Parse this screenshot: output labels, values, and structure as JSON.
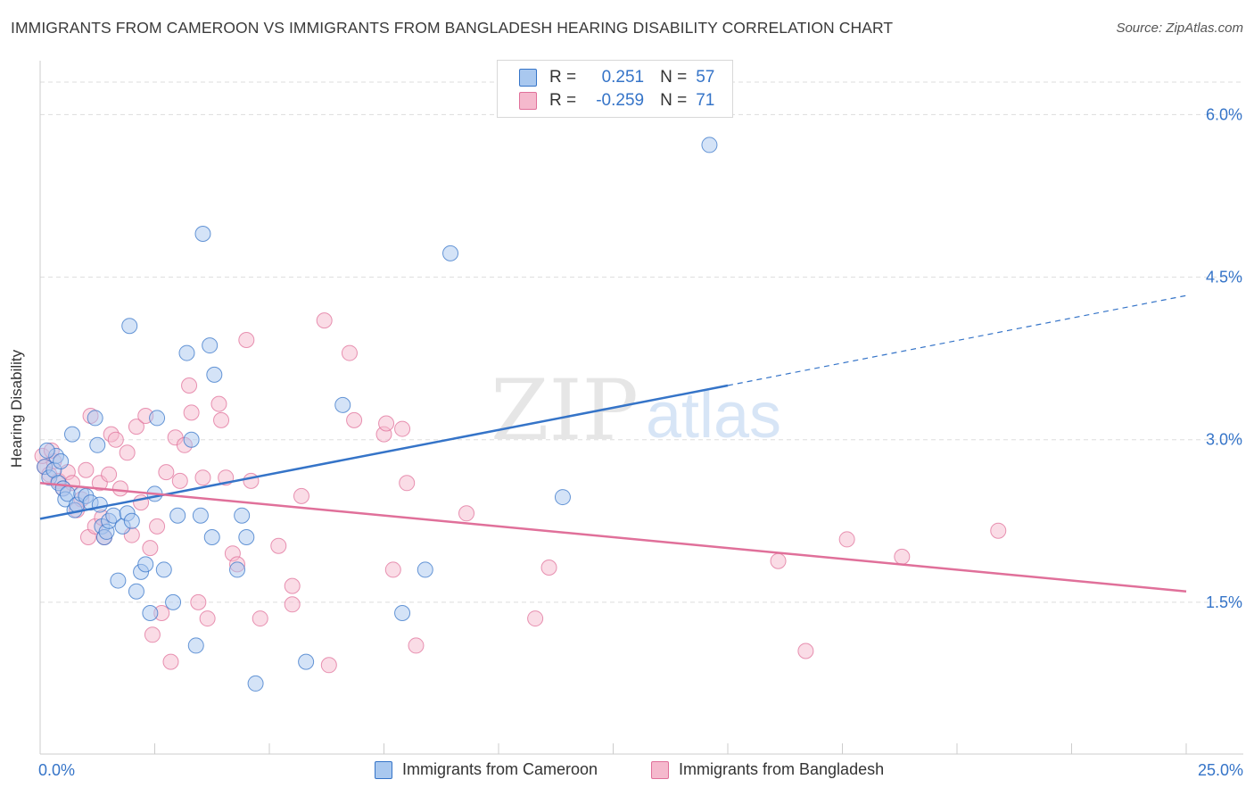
{
  "title": "IMMIGRANTS FROM CAMEROON VS IMMIGRANTS FROM BANGLADESH HEARING DISABILITY CORRELATION CHART",
  "source": "Source: ZipAtlas.com",
  "watermark": {
    "zip": "ZIP",
    "atlas": "atlas"
  },
  "colors": {
    "blue": "#3574c8",
    "blue_fill": "#a9c8ef",
    "pink": "#e0709a",
    "pink_fill": "#f5b9cd",
    "grid": "#dddddd"
  },
  "legend": {
    "rows": [
      {
        "r_label": "R =",
        "r_value": "0.251",
        "n_label": "N =",
        "n_value": "57"
      },
      {
        "r_label": "R =",
        "r_value": "-0.259",
        "n_label": "N =",
        "n_value": "71"
      }
    ]
  },
  "bottom_legend": {
    "series1": "Immigrants from Cameroon",
    "series2": "Immigrants from Bangladesh"
  },
  "chart_data": {
    "type": "scatter",
    "xlabel": "",
    "ylabel": "Hearing Disability",
    "xlim": [
      0,
      25
    ],
    "ylim": [
      0,
      6.3
    ],
    "x_tick_labels": [
      "0.0%",
      "25.0%"
    ],
    "y_ticks": [
      1.5,
      3.0,
      4.5,
      6.0
    ],
    "y_tick_labels": [
      "1.5%",
      "3.0%",
      "4.5%",
      "6.0%"
    ],
    "grid": true,
    "series": [
      {
        "name": "Immigrants from Cameroon",
        "r": 0.251,
        "n": 57,
        "trend": {
          "x0": 0,
          "y0": 2.27,
          "x1": 15,
          "y1": 3.5,
          "dashed_to_x": 25,
          "dashed_to_y": 4.33
        },
        "points": [
          [
            0.1,
            2.75
          ],
          [
            0.2,
            2.65
          ],
          [
            0.3,
            2.72
          ],
          [
            0.35,
            2.85
          ],
          [
            0.4,
            2.6
          ],
          [
            0.45,
            2.8
          ],
          [
            0.5,
            2.55
          ],
          [
            0.55,
            2.45
          ],
          [
            0.6,
            2.5
          ],
          [
            0.7,
            3.05
          ],
          [
            0.75,
            2.35
          ],
          [
            0.8,
            2.4
          ],
          [
            0.9,
            2.5
          ],
          [
            1.0,
            2.48
          ],
          [
            1.1,
            2.42
          ],
          [
            1.2,
            3.2
          ],
          [
            1.25,
            2.95
          ],
          [
            1.3,
            2.4
          ],
          [
            1.35,
            2.2
          ],
          [
            1.4,
            2.1
          ],
          [
            1.45,
            2.15
          ],
          [
            1.5,
            2.25
          ],
          [
            1.6,
            2.3
          ],
          [
            1.7,
            1.7
          ],
          [
            1.8,
            2.2
          ],
          [
            1.9,
            2.32
          ],
          [
            1.95,
            4.05
          ],
          [
            2.0,
            2.25
          ],
          [
            2.1,
            1.6
          ],
          [
            2.2,
            1.78
          ],
          [
            2.3,
            1.85
          ],
          [
            2.4,
            1.4
          ],
          [
            2.5,
            2.5
          ],
          [
            2.55,
            3.2
          ],
          [
            2.7,
            1.8
          ],
          [
            2.9,
            1.5
          ],
          [
            3.0,
            2.3
          ],
          [
            3.2,
            3.8
          ],
          [
            3.3,
            3.0
          ],
          [
            3.4,
            1.1
          ],
          [
            3.5,
            2.3
          ],
          [
            3.55,
            4.9
          ],
          [
            3.7,
            3.87
          ],
          [
            3.75,
            2.1
          ],
          [
            3.8,
            3.6
          ],
          [
            4.3,
            1.8
          ],
          [
            4.4,
            2.3
          ],
          [
            4.5,
            2.1
          ],
          [
            4.7,
            0.75
          ],
          [
            5.8,
            0.95
          ],
          [
            6.6,
            3.32
          ],
          [
            7.9,
            1.4
          ],
          [
            8.4,
            1.8
          ],
          [
            8.95,
            4.72
          ],
          [
            11.4,
            2.47
          ],
          [
            14.6,
            5.72
          ],
          [
            0.15,
            2.9
          ]
        ]
      },
      {
        "name": "Immigrants from Bangladesh",
        "r": -0.259,
        "n": 71,
        "trend": {
          "x0": 0,
          "y0": 2.6,
          "x1": 25,
          "y1": 1.6
        },
        "points": [
          [
            0.1,
            2.75
          ],
          [
            0.2,
            2.68
          ],
          [
            0.3,
            2.8
          ],
          [
            0.4,
            2.62
          ],
          [
            0.5,
            2.55
          ],
          [
            0.6,
            2.7
          ],
          [
            0.7,
            2.6
          ],
          [
            0.8,
            2.35
          ],
          [
            0.9,
            2.45
          ],
          [
            1.0,
            2.72
          ],
          [
            1.05,
            2.1
          ],
          [
            1.1,
            3.22
          ],
          [
            1.2,
            2.2
          ],
          [
            1.3,
            2.6
          ],
          [
            1.4,
            2.1
          ],
          [
            1.5,
            2.68
          ],
          [
            1.55,
            3.05
          ],
          [
            1.65,
            3.0
          ],
          [
            1.75,
            2.55
          ],
          [
            1.9,
            2.88
          ],
          [
            2.0,
            2.12
          ],
          [
            2.1,
            3.12
          ],
          [
            2.2,
            2.42
          ],
          [
            2.3,
            3.22
          ],
          [
            2.4,
            2.0
          ],
          [
            2.45,
            1.2
          ],
          [
            2.55,
            2.2
          ],
          [
            2.65,
            1.4
          ],
          [
            2.75,
            2.7
          ],
          [
            2.85,
            0.95
          ],
          [
            2.95,
            3.02
          ],
          [
            3.05,
            2.62
          ],
          [
            3.15,
            2.95
          ],
          [
            3.25,
            3.5
          ],
          [
            3.3,
            3.25
          ],
          [
            3.45,
            1.5
          ],
          [
            3.55,
            2.65
          ],
          [
            3.65,
            1.35
          ],
          [
            3.9,
            3.33
          ],
          [
            3.95,
            3.18
          ],
          [
            4.05,
            2.65
          ],
          [
            4.2,
            1.95
          ],
          [
            4.3,
            1.85
          ],
          [
            4.5,
            3.92
          ],
          [
            4.6,
            2.62
          ],
          [
            4.8,
            1.35
          ],
          [
            5.2,
            2.02
          ],
          [
            5.5,
            1.65
          ],
          [
            5.5,
            1.48
          ],
          [
            5.7,
            2.48
          ],
          [
            6.2,
            4.1
          ],
          [
            6.3,
            0.92
          ],
          [
            6.75,
            3.8
          ],
          [
            6.85,
            3.18
          ],
          [
            7.5,
            3.05
          ],
          [
            7.55,
            3.15
          ],
          [
            7.7,
            1.8
          ],
          [
            7.9,
            3.1
          ],
          [
            8.0,
            2.6
          ],
          [
            8.2,
            1.1
          ],
          [
            9.3,
            2.32
          ],
          [
            10.8,
            1.35
          ],
          [
            11.1,
            1.82
          ],
          [
            16.1,
            1.88
          ],
          [
            16.7,
            1.05
          ],
          [
            17.6,
            2.08
          ],
          [
            18.8,
            1.92
          ],
          [
            20.9,
            2.16
          ],
          [
            0.05,
            2.85
          ],
          [
            0.25,
            2.9
          ],
          [
            1.35,
            2.28
          ]
        ]
      }
    ]
  }
}
